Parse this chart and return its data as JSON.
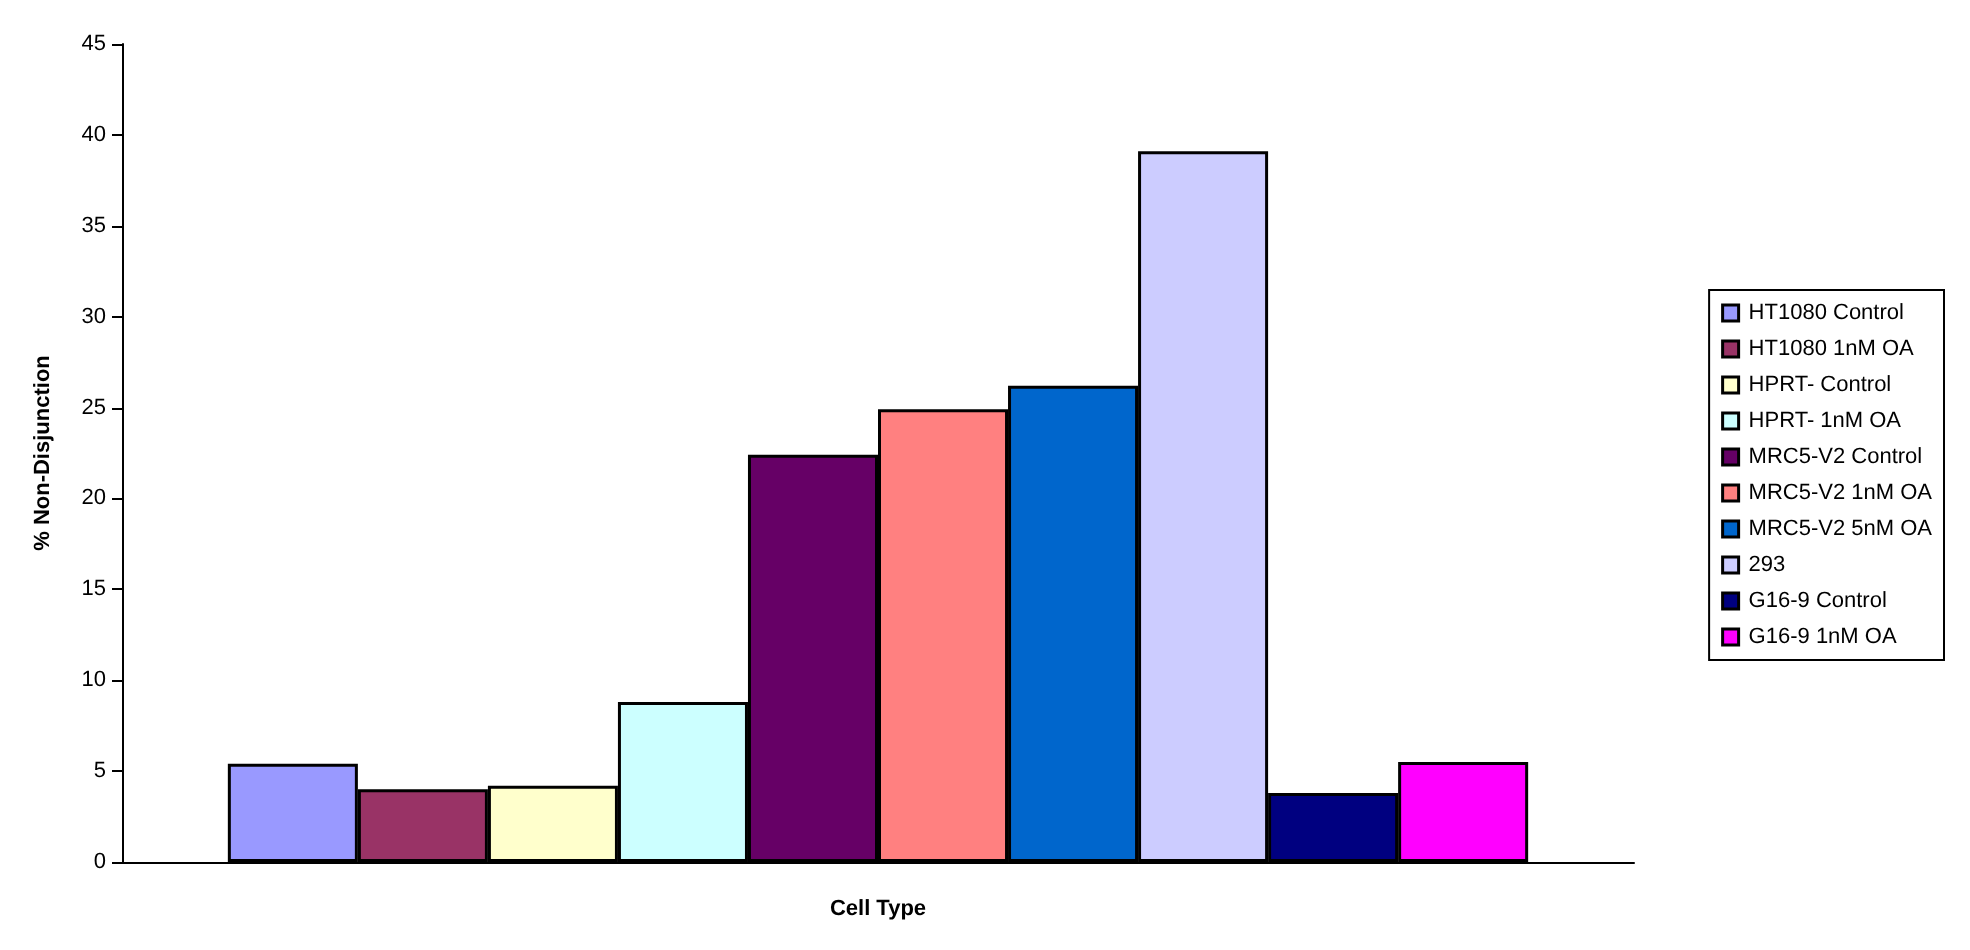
{
  "chart_data": {
    "type": "bar",
    "xlabel": "Cell Type",
    "ylabel": "% Non-Disjunction",
    "categories": [
      null
    ],
    "series": [
      {
        "name": "HT1080 Control",
        "color": "#9999ff",
        "values": [
          5.4
        ]
      },
      {
        "name": "HT1080 1nM OA",
        "color": "#993366",
        "values": [
          4.0
        ]
      },
      {
        "name": "HPRT- Control",
        "color": "#ffffcc",
        "values": [
          4.2
        ]
      },
      {
        "name": "HPRT- 1nM OA",
        "color": "#ccffff",
        "values": [
          8.8
        ]
      },
      {
        "name": "MRC5-V2 Control",
        "color": "#660066",
        "values": [
          22.4
        ]
      },
      {
        "name": "MRC5-V2 1nM OA",
        "color": "#ff8080",
        "values": [
          24.9
        ]
      },
      {
        "name": "MRC5-V2 5nM OA",
        "color": "#0066cc",
        "values": [
          26.2
        ]
      },
      {
        "name": "293",
        "color": "#ccccff",
        "values": [
          39.1
        ]
      },
      {
        "name": "G16-9 Control",
        "color": "#000080",
        "values": [
          3.8
        ]
      },
      {
        "name": "G16-9 1nM OA",
        "color": "#ff00ff",
        "values": [
          5.5
        ]
      }
    ],
    "ylim": [
      0,
      45
    ],
    "yticks": [
      0,
      5,
      10,
      15,
      20,
      25,
      30,
      35,
      40,
      45
    ],
    "grid": false,
    "legend": "right"
  }
}
